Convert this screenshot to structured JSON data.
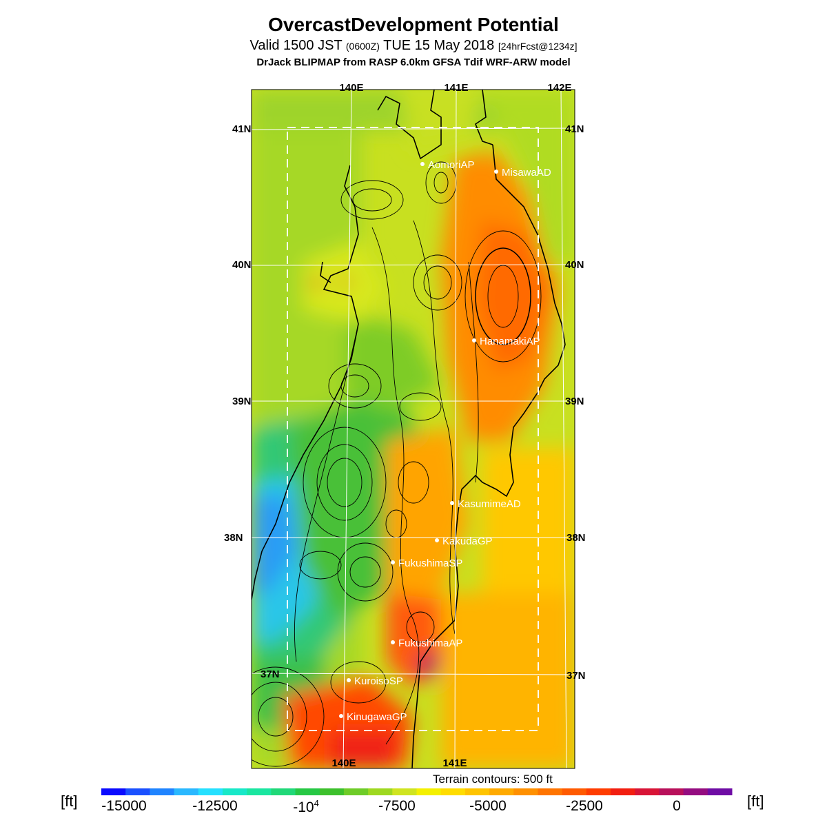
{
  "header": {
    "title": "OvercastDevelopment Potential",
    "valid_prefix": "Valid 1500 JST",
    "valid_zulu": "(0600Z)",
    "valid_date": "TUE 15 May 2018",
    "forecast": "[24hrFcst@1234z]",
    "model": "DrJack BLIPMAP from RASP 6.0km GFSA Tdif WRF-ARW model"
  },
  "map": {
    "lon_labels_top": [
      "140E",
      "141E",
      "142E"
    ],
    "lon_labels_bottom": [
      "140E",
      "141E"
    ],
    "lat_labels": [
      "41N",
      "40N",
      "39N",
      "38N",
      "37N"
    ],
    "stations": [
      {
        "name": "AomoriAP"
      },
      {
        "name": "MisawaAD"
      },
      {
        "name": "HanamakiAP"
      },
      {
        "name": "KasumimeAD"
      },
      {
        "name": "KakudaGP"
      },
      {
        "name": "FukushimaSP"
      },
      {
        "name": "FukushimaAP"
      },
      {
        "name": "KuroisoSP"
      },
      {
        "name": "KinugawaGP"
      }
    ]
  },
  "legend": {
    "unit": "[ft]",
    "terrain_note": "Terrain contours: 500 ft",
    "ticks": [
      "-15000",
      "-12500",
      "-10",
      "-7500",
      "-5000",
      "-2500",
      "0"
    ],
    "tick_exponent": "4",
    "colors": [
      "#0a0aff",
      "#1a50ff",
      "#1f84ff",
      "#2ab8ff",
      "#25e0ff",
      "#18e8c8",
      "#1ae6a0",
      "#20d878",
      "#26c844",
      "#3cc02c",
      "#6ecc28",
      "#9ed820",
      "#cfe420",
      "#f4f000",
      "#ffdc00",
      "#ffc400",
      "#ffaa00",
      "#ff9000",
      "#ff7400",
      "#ff5a00",
      "#ff3c00",
      "#f21e10",
      "#d81436",
      "#b8105a",
      "#940c80",
      "#6e0ca4"
    ]
  }
}
